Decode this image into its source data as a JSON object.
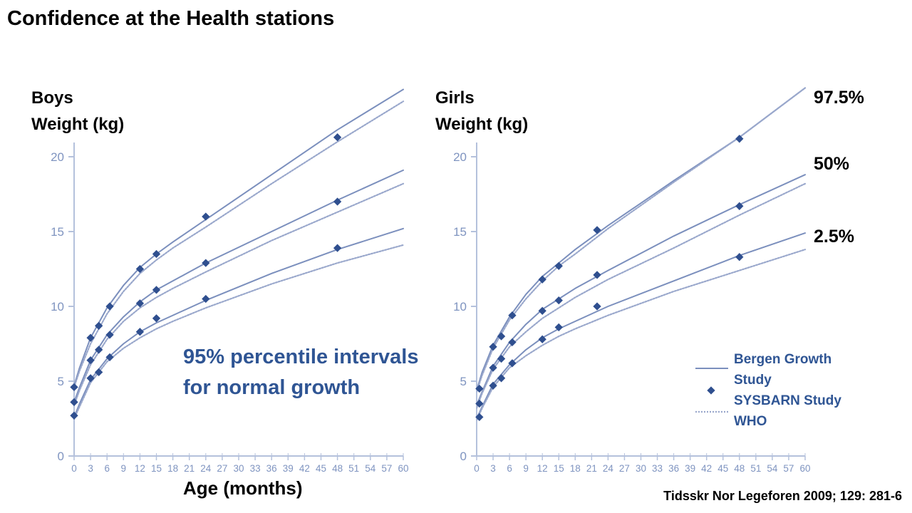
{
  "slide": {
    "title": "Confidence at the Health stations",
    "annotation_line1": "95% percentile intervals",
    "annotation_line2": "for normal growth",
    "xlabel": "Age (months)",
    "citation": "Tidsskr Nor Legeforen 2009; 129: 281-6"
  },
  "legend": {
    "bergen_line1": "Bergen Growth",
    "bergen_line2": "Study",
    "sysbarn": "SYSBARN Study",
    "who": "WHO"
  },
  "colors": {
    "line": "#7b8fbd",
    "who": "#9aa8cc",
    "marker": "#2f4f8f",
    "axis": "#b4c1dc",
    "tick": "#7f94c0",
    "text_blue": "#2f5594"
  },
  "chart_data": [
    {
      "type": "line",
      "panel_line1": "Boys",
      "panel_line2": "Weight (kg)",
      "percentile_labels": [],
      "xlim": [
        0,
        60
      ],
      "ylim": [
        0,
        20
      ],
      "xticks": [
        0,
        3,
        6,
        9,
        12,
        15,
        18,
        21,
        24,
        27,
        30,
        33,
        36,
        39,
        42,
        45,
        48,
        51,
        54,
        57,
        60
      ],
      "yticks": [
        0,
        5,
        10,
        15,
        20
      ],
      "series": [
        {
          "name": "Bergen Growth Study",
          "percentile": "97.5%",
          "style": "solid",
          "x": [
            0,
            1,
            3,
            6,
            9,
            12,
            15,
            18,
            24,
            36,
            48,
            60
          ],
          "y": [
            4.7,
            5.9,
            7.9,
            9.9,
            11.4,
            12.6,
            13.5,
            14.3,
            15.8,
            18.8,
            21.8,
            24.5
          ]
        },
        {
          "name": "Bergen Growth Study",
          "percentile": "50%",
          "style": "solid",
          "x": [
            0,
            1,
            3,
            6,
            9,
            12,
            15,
            18,
            24,
            36,
            48,
            60
          ],
          "y": [
            3.6,
            4.6,
            6.4,
            8.1,
            9.3,
            10.3,
            11.1,
            11.7,
            12.9,
            15.0,
            17.1,
            19.1
          ]
        },
        {
          "name": "Bergen Growth Study",
          "percentile": "2.5%",
          "style": "solid",
          "x": [
            0,
            1,
            3,
            6,
            9,
            12,
            15,
            18,
            24,
            36,
            48,
            60
          ],
          "y": [
            2.6,
            3.5,
            5.1,
            6.5,
            7.5,
            8.3,
            8.9,
            9.4,
            10.4,
            12.2,
            13.8,
            15.2
          ]
        },
        {
          "name": "WHO",
          "percentile": "97.5%",
          "style": "dotted",
          "x": [
            0,
            1,
            3,
            6,
            9,
            12,
            15,
            18,
            24,
            36,
            48,
            60
          ],
          "y": [
            4.6,
            5.7,
            7.5,
            9.5,
            11.0,
            12.2,
            13.1,
            13.9,
            15.3,
            18.2,
            21.0,
            23.7
          ]
        },
        {
          "name": "WHO",
          "percentile": "50%",
          "style": "dotted",
          "x": [
            0,
            1,
            3,
            6,
            9,
            12,
            15,
            18,
            24,
            36,
            48,
            60
          ],
          "y": [
            3.4,
            4.4,
            6.1,
            7.8,
            9.0,
            9.9,
            10.6,
            11.2,
            12.3,
            14.4,
            16.3,
            18.2
          ]
        },
        {
          "name": "WHO",
          "percentile": "2.5%",
          "style": "dotted",
          "x": [
            0,
            1,
            3,
            6,
            9,
            12,
            15,
            18,
            24,
            36,
            48,
            60
          ],
          "y": [
            2.5,
            3.3,
            4.9,
            6.3,
            7.2,
            7.9,
            8.5,
            9.0,
            9.9,
            11.5,
            12.9,
            14.1
          ]
        },
        {
          "name": "SYSBARN Study",
          "percentile": "97.5%",
          "style": "marker",
          "x": [
            0,
            3,
            4.5,
            6.5,
            12,
            15,
            24,
            48
          ],
          "y": [
            4.6,
            7.9,
            8.7,
            10.0,
            12.5,
            13.5,
            16.0,
            21.3
          ]
        },
        {
          "name": "SYSBARN Study",
          "percentile": "50%",
          "style": "marker",
          "x": [
            0,
            3,
            4.5,
            6.5,
            12,
            15,
            24,
            48
          ],
          "y": [
            3.6,
            6.4,
            7.1,
            8.1,
            10.2,
            11.1,
            12.9,
            17.0
          ]
        },
        {
          "name": "SYSBARN Study",
          "percentile": "2.5%",
          "style": "marker",
          "x": [
            0,
            3,
            4.5,
            6.5,
            12,
            15,
            24,
            48
          ],
          "y": [
            2.7,
            5.2,
            5.6,
            6.6,
            8.3,
            9.2,
            10.5,
            13.9
          ]
        }
      ]
    },
    {
      "type": "line",
      "panel_line1": "Girls",
      "panel_line2": "Weight (kg)",
      "percentile_labels": [
        "97.5%",
        "50%",
        "2.5%"
      ],
      "xlim": [
        0,
        60
      ],
      "ylim": [
        0,
        20
      ],
      "xticks": [
        0,
        3,
        6,
        9,
        12,
        15,
        18,
        21,
        24,
        27,
        30,
        33,
        36,
        39,
        42,
        45,
        48,
        51,
        54,
        57,
        60
      ],
      "yticks": [
        0,
        5,
        10,
        15,
        20
      ],
      "series": [
        {
          "name": "Bergen Growth Study",
          "percentile": "97.5%",
          "style": "solid",
          "x": [
            0,
            1,
            3,
            6,
            9,
            12,
            15,
            18,
            24,
            36,
            48,
            60
          ],
          "y": [
            4.4,
            5.6,
            7.4,
            9.3,
            10.8,
            12.0,
            12.9,
            13.8,
            15.4,
            18.4,
            21.3,
            24.6
          ]
        },
        {
          "name": "Bergen Growth Study",
          "percentile": "50%",
          "style": "solid",
          "x": [
            0,
            1,
            3,
            6,
            9,
            12,
            15,
            18,
            24,
            36,
            48,
            60
          ],
          "y": [
            3.4,
            4.3,
            6.0,
            7.6,
            8.8,
            9.8,
            10.5,
            11.2,
            12.4,
            14.7,
            16.8,
            18.8
          ]
        },
        {
          "name": "Bergen Growth Study",
          "percentile": "2.5%",
          "style": "solid",
          "x": [
            0,
            1,
            3,
            6,
            9,
            12,
            15,
            18,
            24,
            36,
            48,
            60
          ],
          "y": [
            2.5,
            3.3,
            4.8,
            6.1,
            7.1,
            7.9,
            8.5,
            9.0,
            10.0,
            11.7,
            13.4,
            14.9
          ]
        },
        {
          "name": "WHO",
          "percentile": "97.5%",
          "style": "dotted",
          "x": [
            0,
            1,
            3,
            6,
            9,
            12,
            15,
            18,
            24,
            36,
            48,
            60
          ],
          "y": [
            4.3,
            5.4,
            7.2,
            9.1,
            10.5,
            11.7,
            12.7,
            13.5,
            15.2,
            18.3,
            21.3,
            24.6
          ]
        },
        {
          "name": "WHO",
          "percentile": "50%",
          "style": "dotted",
          "x": [
            0,
            1,
            3,
            6,
            9,
            12,
            15,
            18,
            24,
            36,
            48,
            60
          ],
          "y": [
            3.2,
            4.2,
            5.8,
            7.3,
            8.3,
            9.2,
            9.9,
            10.6,
            11.8,
            13.9,
            16.1,
            18.2
          ]
        },
        {
          "name": "WHO",
          "percentile": "2.5%",
          "style": "dotted",
          "x": [
            0,
            1,
            3,
            6,
            9,
            12,
            15,
            18,
            24,
            36,
            48,
            60
          ],
          "y": [
            2.4,
            3.2,
            4.6,
            5.9,
            6.7,
            7.4,
            8.0,
            8.5,
            9.4,
            11.0,
            12.4,
            13.8
          ]
        },
        {
          "name": "SYSBARN Study",
          "percentile": "97.5%",
          "style": "marker",
          "x": [
            0.5,
            3,
            4.5,
            6.5,
            12,
            15,
            22,
            48
          ],
          "y": [
            4.5,
            7.3,
            8.0,
            9.4,
            11.8,
            12.7,
            15.1,
            21.2
          ]
        },
        {
          "name": "SYSBARN Study",
          "percentile": "50%",
          "style": "marker",
          "x": [
            0.5,
            3,
            4.5,
            6.5,
            12,
            15,
            22,
            48
          ],
          "y": [
            3.5,
            5.9,
            6.5,
            7.6,
            9.7,
            10.4,
            12.1,
            16.7
          ]
        },
        {
          "name": "SYSBARN Study",
          "percentile": "2.5%",
          "style": "marker",
          "x": [
            0.5,
            3,
            4.5,
            6.5,
            12,
            15,
            22,
            48
          ],
          "y": [
            2.6,
            4.7,
            5.2,
            6.2,
            7.8,
            8.6,
            10.0,
            13.3
          ]
        }
      ]
    }
  ]
}
